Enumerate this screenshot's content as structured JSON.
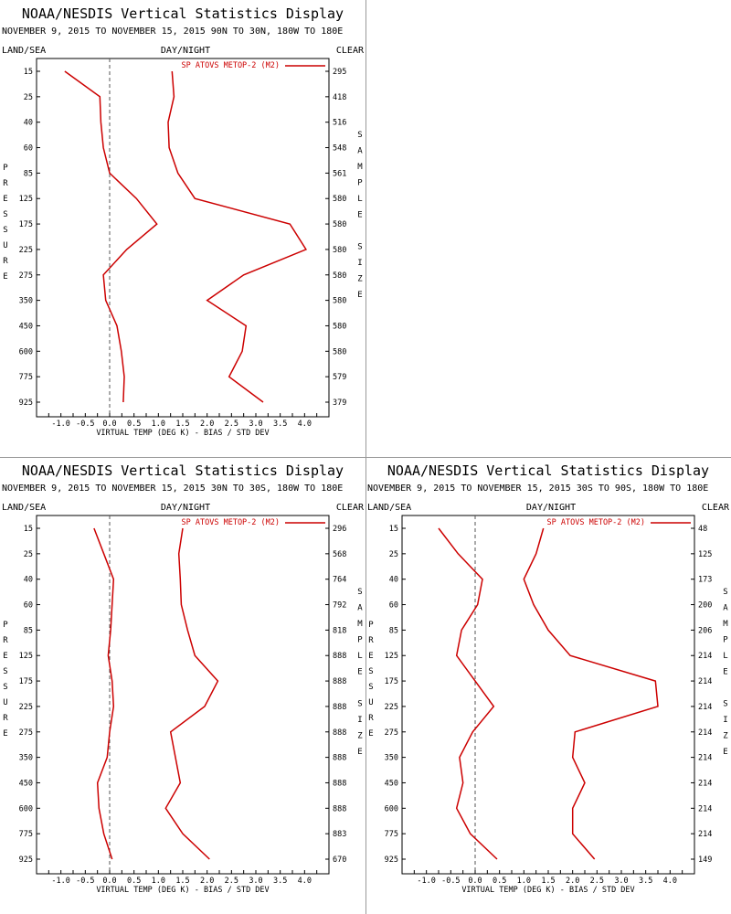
{
  "chart_data": [
    {
      "type": "line",
      "title": "NOAA/NESDIS Vertical Statistics Display",
      "subtitle": "NOVEMBER 9, 2015 TO NOVEMBER 15, 2015 90N TO 30N, 180W TO 180E",
      "label_left": "LAND/SEA",
      "label_center": "DAY/NIGHT",
      "label_right": "CLEAR",
      "ylabel": "PRESSURE",
      "y2label": "SAMPLE SIZE",
      "xlabel": "VIRTUAL TEMP (DEG K) - BIAS / STD DEV",
      "legend": "SP ATOVS METOP-2 (M2)",
      "legend_position": "top-right",
      "color": "#cc0000",
      "xlim": [
        -1.5,
        4.5
      ],
      "x_ticks": [
        "-1.0",
        "-0.5",
        "0.0",
        "0.5",
        "1.0",
        "1.5",
        "2.0",
        "2.5",
        "3.0",
        "3.5",
        "4.0"
      ],
      "pressure_levels": [
        "15",
        "25",
        "40",
        "60",
        "85",
        "125",
        "175",
        "225",
        "275",
        "350",
        "450",
        "600",
        "775",
        "925"
      ],
      "sample_size": [
        "295",
        "418",
        "516",
        "548",
        "561",
        "580",
        "580",
        "580",
        "580",
        "580",
        "580",
        "580",
        "579",
        "379"
      ],
      "series": [
        {
          "values": [
            -0.92,
            -0.2,
            -0.18,
            -0.13,
            0.0,
            0.55,
            0.97,
            0.35,
            -0.13,
            -0.08,
            0.15,
            0.24,
            0.3,
            0.28
          ]
        },
        {
          "values": [
            1.28,
            1.32,
            1.2,
            1.22,
            1.4,
            1.75,
            3.7,
            4.03,
            2.75,
            2.0,
            2.8,
            2.72,
            2.45,
            3.15
          ]
        }
      ]
    },
    {
      "type": "line",
      "title": "NOAA/NESDIS Vertical Statistics Display",
      "subtitle": "NOVEMBER 9, 2015 TO NOVEMBER 15, 2015 30N TO 30S, 180W TO 180E",
      "label_left": "LAND/SEA",
      "label_center": "DAY/NIGHT",
      "label_right": "CLEAR",
      "ylabel": "PRESSURE",
      "y2label": "SAMPLE SIZE",
      "xlabel": "VIRTUAL TEMP (DEG K) - BIAS / STD DEV",
      "legend": "SP ATOVS METOP-2 (M2)",
      "legend_position": "top-right",
      "color": "#cc0000",
      "xlim": [
        -1.5,
        4.5
      ],
      "x_ticks": [
        "-1.0",
        "-0.5",
        "0.0",
        "0.5",
        "1.0",
        "1.5",
        "2.0",
        "2.5",
        "3.0",
        "3.5",
        "4.0"
      ],
      "pressure_levels": [
        "15",
        "25",
        "40",
        "60",
        "85",
        "125",
        "175",
        "225",
        "275",
        "350",
        "450",
        "600",
        "775",
        "925"
      ],
      "sample_size": [
        "296",
        "568",
        "764",
        "792",
        "818",
        "888",
        "888",
        "888",
        "888",
        "888",
        "888",
        "888",
        "883",
        "670"
      ],
      "series": [
        {
          "values": [
            -0.32,
            -0.12,
            0.08,
            0.05,
            0.02,
            -0.03,
            0.05,
            0.08,
            0.0,
            -0.05,
            -0.25,
            -0.22,
            -0.12,
            0.05
          ]
        },
        {
          "values": [
            1.5,
            1.42,
            1.45,
            1.47,
            1.6,
            1.75,
            2.22,
            1.95,
            1.25,
            1.35,
            1.45,
            1.15,
            1.5,
            2.05
          ]
        }
      ]
    },
    {
      "type": "line",
      "title": "NOAA/NESDIS Vertical Statistics Display",
      "subtitle": "NOVEMBER 9, 2015 TO NOVEMBER 15, 2015 30S TO 90S, 180W TO 180E",
      "label_left": "LAND/SEA",
      "label_center": "DAY/NIGHT",
      "label_right": "CLEAR",
      "ylabel": "PRESSURE",
      "y2label": "SAMPLE SIZE",
      "xlabel": "VIRTUAL TEMP (DEG K) - BIAS / STD DEV",
      "legend": "SP ATOVS METOP-2 (M2)",
      "legend_position": "top-right",
      "color": "#cc0000",
      "xlim": [
        -1.5,
        4.5
      ],
      "x_ticks": [
        "-1.0",
        "-0.5",
        "0.0",
        "0.5",
        "1.0",
        "1.5",
        "2.0",
        "2.5",
        "3.0",
        "3.5",
        "4.0"
      ],
      "pressure_levels": [
        "15",
        "25",
        "40",
        "60",
        "85",
        "125",
        "175",
        "225",
        "275",
        "350",
        "450",
        "600",
        "775",
        "925"
      ],
      "sample_size": [
        "48",
        "125",
        "173",
        "200",
        "206",
        "214",
        "214",
        "214",
        "214",
        "214",
        "214",
        "214",
        "214",
        "149"
      ],
      "series": [
        {
          "values": [
            -0.75,
            -0.35,
            0.15,
            0.05,
            -0.28,
            -0.38,
            0.0,
            0.38,
            -0.05,
            -0.32,
            -0.25,
            -0.38,
            -0.1,
            0.45
          ]
        },
        {
          "values": [
            1.4,
            1.25,
            1.0,
            1.2,
            1.5,
            1.95,
            3.7,
            3.75,
            2.05,
            2.0,
            2.25,
            2.0,
            2.0,
            2.45
          ]
        }
      ]
    }
  ]
}
